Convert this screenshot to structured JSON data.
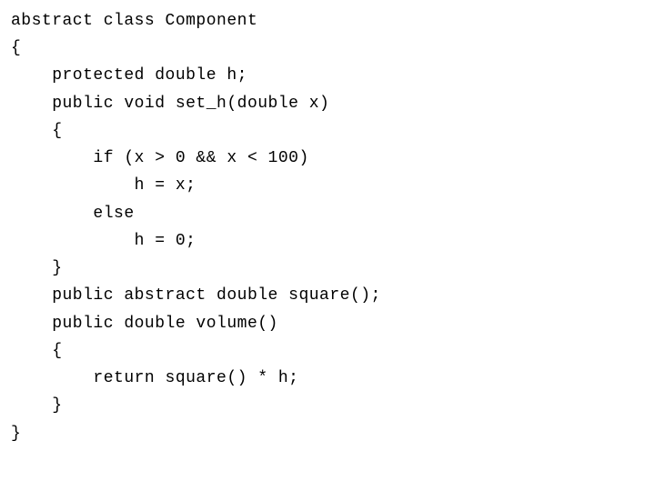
{
  "code": {
    "font_family": "Courier New",
    "font_size_pt": 14,
    "text_color": "#000000",
    "background_color": "#ffffff",
    "indent_unit": "    ",
    "lines": [
      "abstract class Component",
      "{",
      "    protected double h;",
      "    public void set_h(double x)",
      "    {",
      "        if (x > 0 && x < 100)",
      "            h = x;",
      "        else",
      "            h = 0;",
      "    }",
      "    public abstract double square();",
      "    public double volume()",
      "    {",
      "        return square() * h;",
      "    }",
      "}"
    ]
  }
}
